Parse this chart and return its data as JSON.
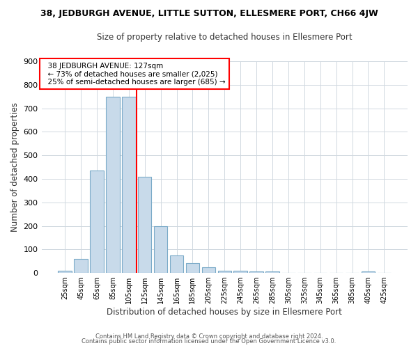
{
  "title": "38, JEDBURGH AVENUE, LITTLE SUTTON, ELLESMERE PORT, CH66 4JW",
  "subtitle": "Size of property relative to detached houses in Ellesmere Port",
  "xlabel": "Distribution of detached houses by size in Ellesmere Port",
  "ylabel": "Number of detached properties",
  "bar_color": "#c8daea",
  "bar_edge_color": "#7aaac8",
  "categories": [
    "25sqm",
    "45sqm",
    "65sqm",
    "85sqm",
    "105sqm",
    "125sqm",
    "145sqm",
    "165sqm",
    "185sqm",
    "205sqm",
    "225sqm",
    "245sqm",
    "265sqm",
    "285sqm",
    "305sqm",
    "325sqm",
    "345sqm",
    "365sqm",
    "385sqm",
    "405sqm",
    "425sqm"
  ],
  "values": [
    10,
    60,
    435,
    750,
    750,
    410,
    200,
    75,
    42,
    25,
    10,
    10,
    7,
    5,
    0,
    0,
    0,
    0,
    0,
    5,
    0
  ],
  "annotation_line1": "38 JEDBURGH AVENUE: 127sqm",
  "annotation_line2": "← 73% of detached houses are smaller (2,025)",
  "annotation_line3": "25% of semi-detached houses are larger (685) →",
  "red_line_index": 4.5,
  "ylim": [
    0,
    900
  ],
  "yticks": [
    0,
    100,
    200,
    300,
    400,
    500,
    600,
    700,
    800,
    900
  ],
  "footer1": "Contains HM Land Registry data © Crown copyright and database right 2024.",
  "footer2": "Contains public sector information licensed under the Open Government Licence v3.0.",
  "bg_color": "#ffffff",
  "plot_bg_color": "#ffffff",
  "grid_color": "#d0d8e0"
}
